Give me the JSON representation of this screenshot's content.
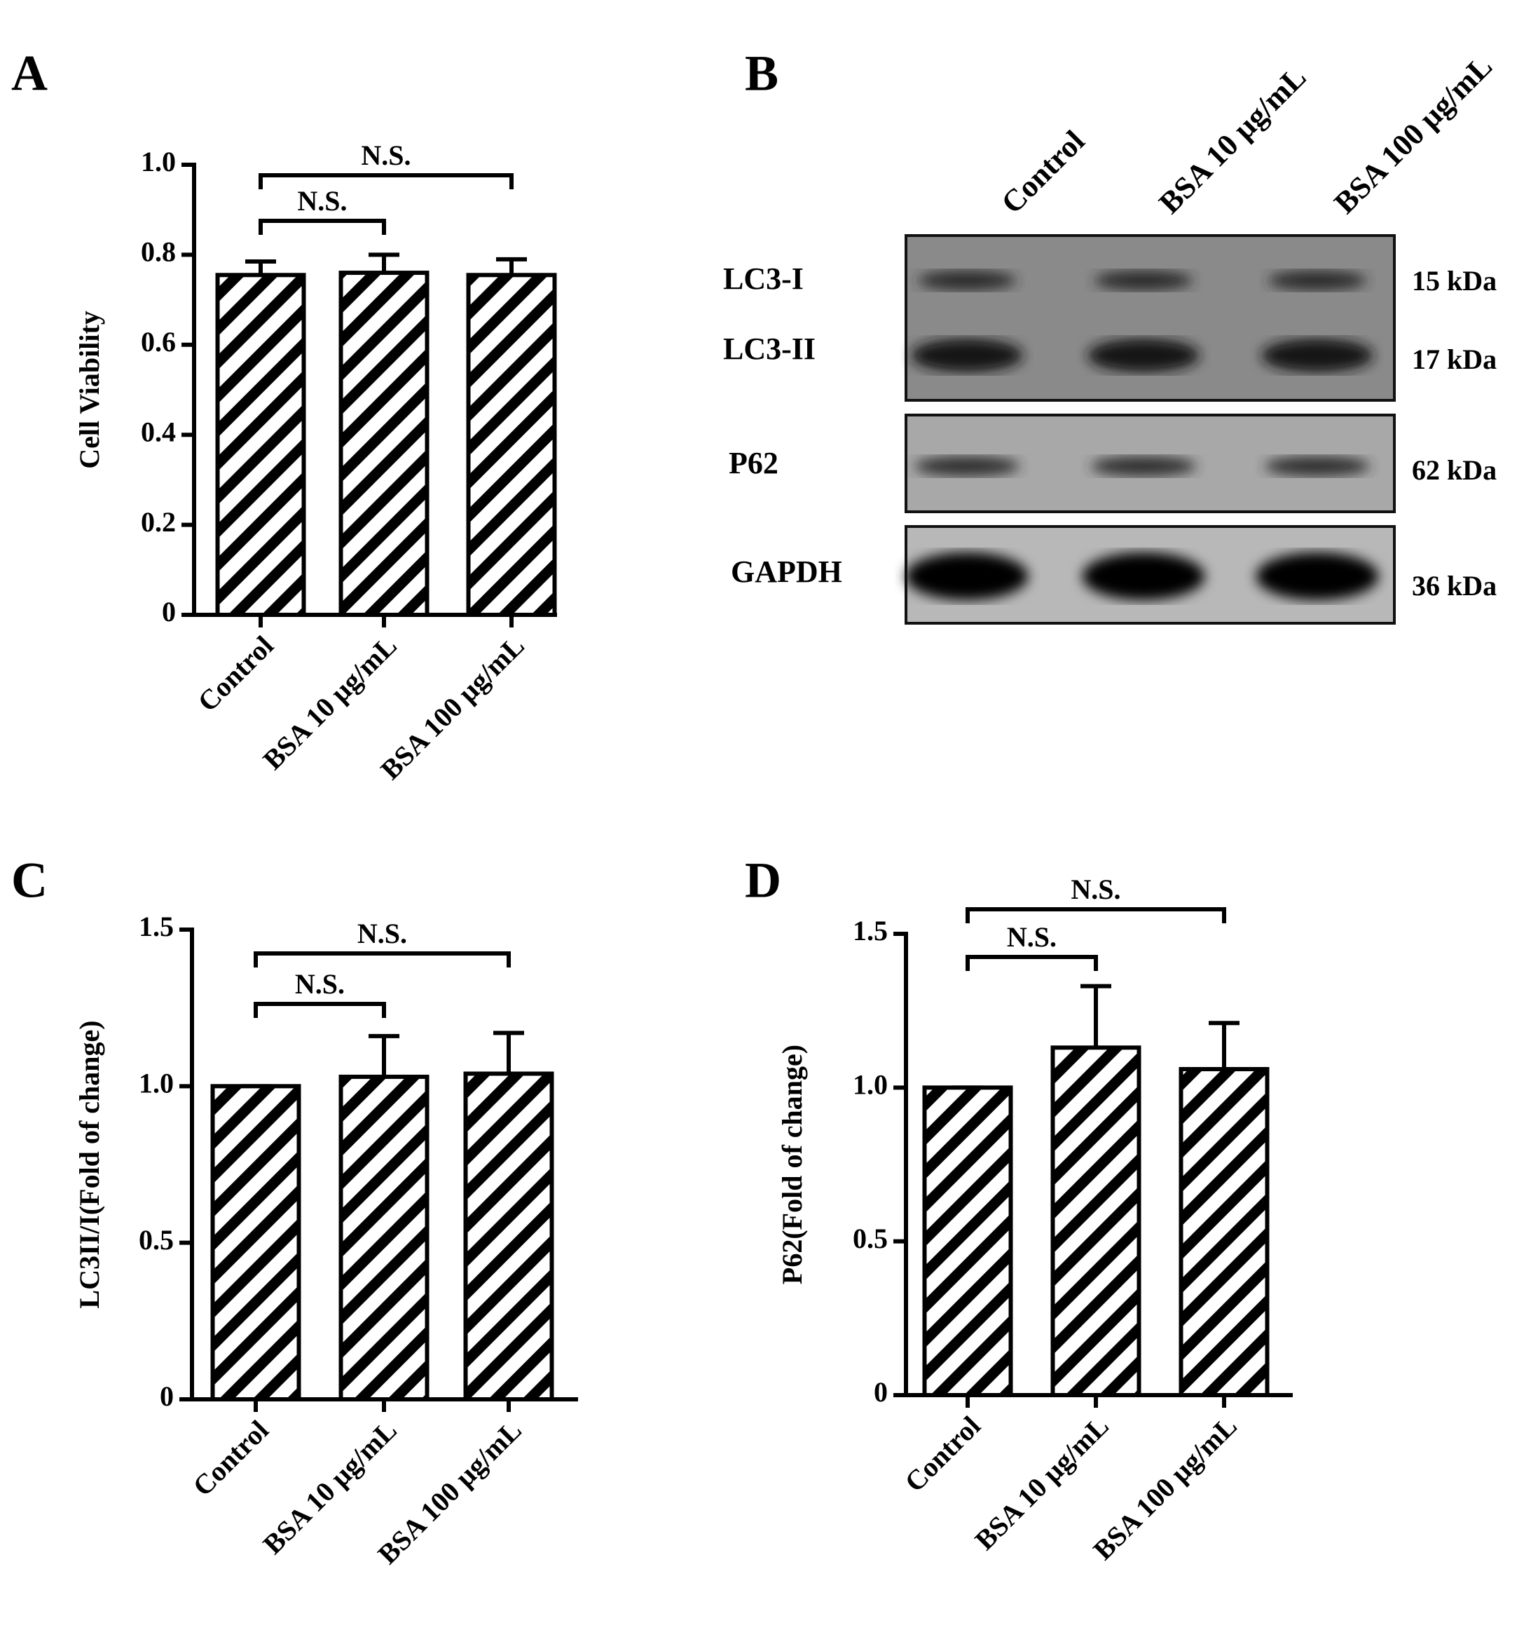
{
  "chart_data": [
    {
      "type": "bar",
      "panel": "A",
      "ylabel": "Cell Viability",
      "categories": [
        "Control",
        "BSA 10 µg/mL",
        "BSA 100 µg/mL"
      ],
      "values": [
        0.755,
        0.76,
        0.755
      ],
      "errors": [
        0.03,
        0.04,
        0.035
      ],
      "ylim": [
        0,
        1
      ],
      "yticks": [
        0,
        0.2,
        0.4,
        0.6,
        0.8,
        {
          "value": 1,
          "label": "1.0"
        }
      ],
      "color": "#000000",
      "brackets": [
        {
          "label": "N.S.",
          "from": 0,
          "to": 2
        },
        {
          "label": "N.S.",
          "from": 0,
          "to": 1
        }
      ]
    },
    {
      "type": "bar",
      "panel": "C",
      "ylabel": "LC3II/I(Fold of change)",
      "categories": [
        "Control",
        "BSA 10 µg/mL",
        "BSA 100 µg/mL"
      ],
      "values": [
        1.0,
        1.03,
        1.04
      ],
      "errors": [
        0,
        0.13,
        0.13
      ],
      "ylim": [
        0,
        1.5
      ],
      "yticks": [
        0,
        0.5,
        {
          "value": 1,
          "label": "1.0"
        },
        1.5
      ],
      "color": "#000000",
      "brackets": [
        {
          "label": "N.S.",
          "from": 0,
          "to": 2
        },
        {
          "label": "N.S.",
          "from": 0,
          "to": 1
        }
      ]
    },
    {
      "type": "bar",
      "panel": "D",
      "ylabel": "P62(Fold of change)",
      "categories": [
        "Control",
        "BSA 10 µg/mL",
        "BSA 100 µg/mL"
      ],
      "values": [
        1.0,
        1.13,
        1.06
      ],
      "errors": [
        0,
        0.2,
        0.15
      ],
      "ylim": [
        0,
        1.5
      ],
      "yticks": [
        0,
        0.5,
        {
          "value": 1,
          "label": "1.0"
        },
        1.5
      ],
      "color": "#000000",
      "brackets": [
        {
          "label": "N.S.",
          "from": 0,
          "to": 2
        },
        {
          "label": "N.S.",
          "from": 0,
          "to": 1
        }
      ]
    }
  ],
  "blot": {
    "panel": "B",
    "lanes": [
      "Control",
      "BSA 10 µg/mL",
      "BSA 100 µg/mL"
    ],
    "rows": [
      {
        "label": "LC3-I",
        "size": "15 kDa"
      },
      {
        "label": "LC3-II",
        "size": "17 kDa"
      },
      {
        "label": "P62",
        "size": "62 kDa"
      },
      {
        "label": "GAPDH",
        "size": "36 kDa"
      }
    ]
  }
}
